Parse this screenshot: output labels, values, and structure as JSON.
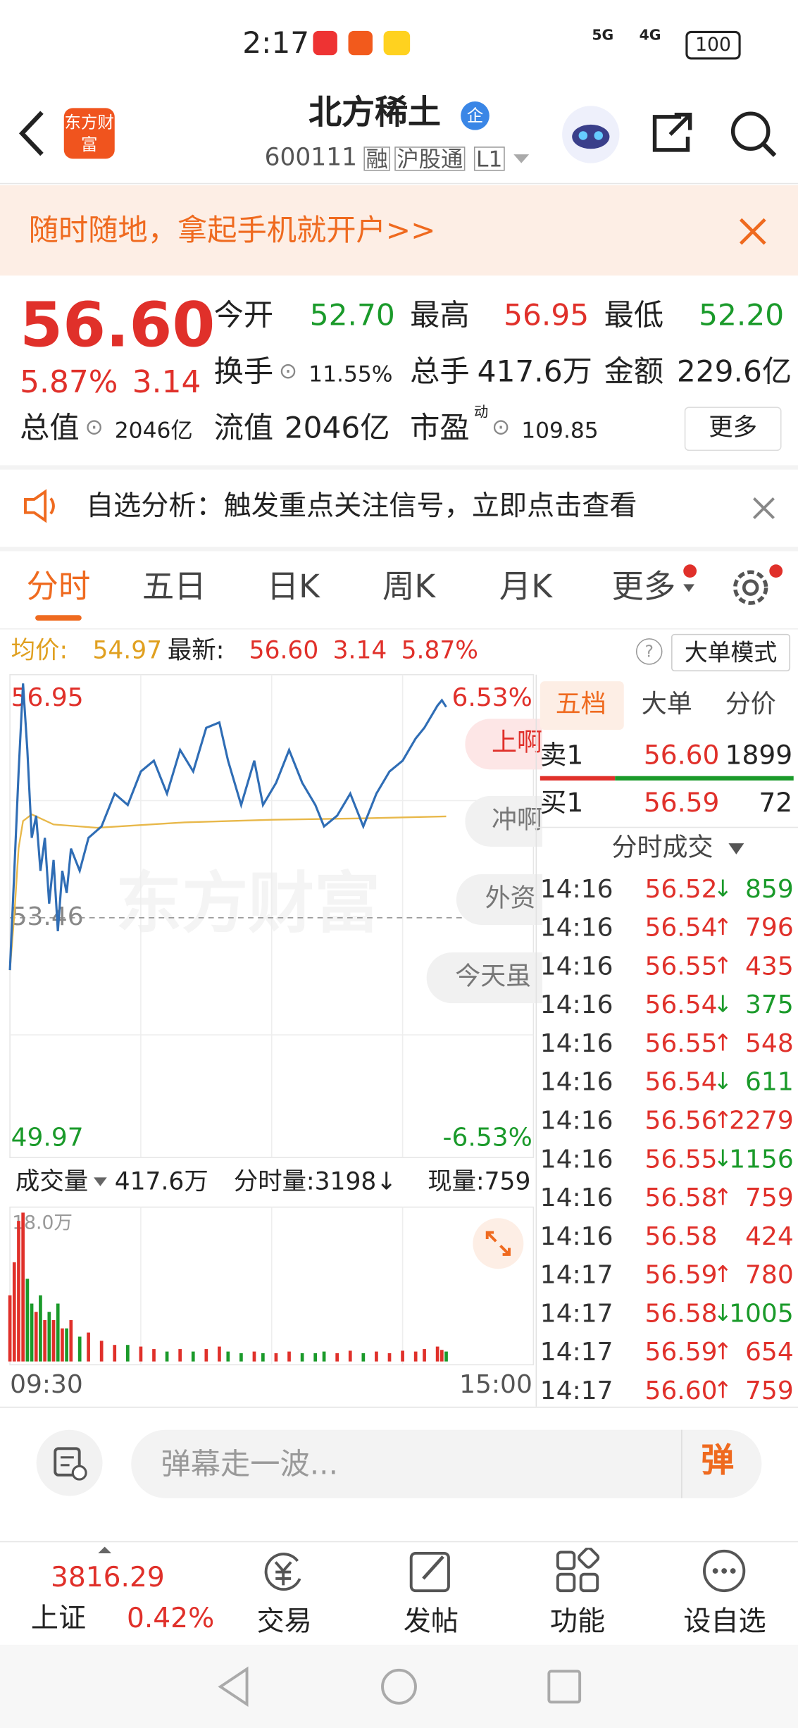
{
  "status_bar": {
    "time": "2:17",
    "network": [
      "5G",
      "4G"
    ],
    "battery": "100"
  },
  "header": {
    "logo": "东方财富",
    "title": "北方稀土",
    "badge": "企",
    "code": "600111",
    "tags": [
      "融",
      "沪股通",
      "L1"
    ]
  },
  "banner": {
    "text": "随时随地，拿起手机就开户>>"
  },
  "quote": {
    "price": "56.60",
    "change_pct": "5.87%",
    "change": "3.14",
    "more": "更多",
    "fields": [
      {
        "label": "今开",
        "value": "52.70"
      },
      {
        "label": "最高",
        "value": "56.95"
      },
      {
        "label": "最低",
        "value": "52.20"
      },
      {
        "label": "换手",
        "value": "11.55%"
      },
      {
        "label": "总手",
        "value": "417.6万"
      },
      {
        "label": "金额",
        "value": "229.6亿"
      },
      {
        "label": "总值",
        "value": "2046亿"
      },
      {
        "label": "流值",
        "value": "2046亿"
      },
      {
        "label": "市盈",
        "sup": "动",
        "value": "109.85"
      }
    ]
  },
  "notice": {
    "text": "自选分析：触发重点关注信号，立即点击查看"
  },
  "tabs": [
    "分时",
    "五日",
    "日K",
    "周K",
    "月K",
    "更多"
  ],
  "info": {
    "avg_label": "均价:",
    "avg": "54.97",
    "last_label": "最新:",
    "last": "56.60",
    "change": "3.14",
    "pct": "5.87%",
    "help": "?",
    "mode": "大单模式"
  },
  "watermark": "东方财富",
  "danmaku": [
    "上啊",
    "冲啊",
    "外资",
    "今天虽"
  ],
  "chart_data": {
    "type": "line",
    "xlim": [
      0,
      240
    ],
    "xticks": [
      {
        "value": 0,
        "label": "09:30"
      },
      {
        "value": 240,
        "label": "15:00"
      }
    ],
    "ylim": [
      49.97,
      56.95
    ],
    "yticks": [
      56.95,
      53.46,
      49.97
    ],
    "y2lim": [
      -6.53,
      6.53
    ],
    "y2ticks": [
      {
        "value": 6.53,
        "label": "6.53%"
      },
      {
        "value": -6.53,
        "label": "-6.53%"
      }
    ],
    "series": [
      {
        "color": "#2f6db5",
        "x": [
          0,
          2,
          4,
          6,
          8,
          10,
          12,
          14,
          16,
          18,
          20,
          22,
          24,
          26,
          28,
          32,
          36,
          42,
          48,
          54,
          60,
          66,
          72,
          78,
          84,
          90,
          96,
          100,
          106,
          112,
          116,
          122,
          128,
          134,
          140,
          144,
          150,
          156,
          162,
          168,
          174,
          180,
          186,
          190,
          196,
          198,
          200
        ],
        "values": [
          52.68,
          54.16,
          55.64,
          56.95,
          55.96,
          54.65,
          54.98,
          54.16,
          54.65,
          53.67,
          54.32,
          53.26,
          54.16,
          53.83,
          54.49,
          54.16,
          54.65,
          54.82,
          55.31,
          55.14,
          55.64,
          55.8,
          55.31,
          55.96,
          55.64,
          56.29,
          56.37,
          55.8,
          55.14,
          55.8,
          55.14,
          55.47,
          55.96,
          55.47,
          55.14,
          54.82,
          54.98,
          55.31,
          54.82,
          55.31,
          55.64,
          55.8,
          56.13,
          56.29,
          56.62,
          56.7,
          56.6
        ]
      },
      {
        "color": "#e8b84a",
        "x": [
          0,
          2,
          4,
          6,
          10,
          20,
          40,
          80,
          120,
          160,
          200
        ],
        "values": [
          52.68,
          53.5,
          54.5,
          54.9,
          55.0,
          54.85,
          54.8,
          54.88,
          54.92,
          54.94,
          54.97
        ]
      }
    ],
    "volume": {
      "up_color": "#e0302a",
      "down_color": "#1a9a2a",
      "ylim": [
        0,
        18
      ],
      "yticks": [
        {
          "value": 18,
          "label": "18.0万"
        }
      ],
      "values": [
        8,
        12,
        17,
        18,
        10,
        7,
        6,
        8,
        5,
        6,
        5,
        7,
        4,
        4,
        5,
        3,
        3.5,
        2.5,
        2,
        2,
        1.8,
        1.5,
        1.2,
        1.5,
        1.2,
        1.5,
        1.8,
        1.2,
        1,
        1.2,
        1,
        1,
        1.2,
        1,
        1,
        1.2,
        1,
        1.3,
        1,
        1.2,
        1,
        1.3,
        1.2,
        1.5,
        1.8,
        1.4,
        1.2
      ]
    }
  },
  "volume_bar": {
    "label": "成交量",
    "total": "417.6万",
    "period": "分时量:3198↓",
    "current": "现量:759"
  },
  "depth": {
    "tabs": [
      "五档",
      "大单",
      "分价"
    ],
    "ask": {
      "label": "卖1",
      "price": "56.60",
      "volume": "1899"
    },
    "bid": {
      "label": "买1",
      "price": "56.59",
      "volume": "72"
    },
    "trades_title": "分时成交"
  },
  "trades": [
    {
      "time": "14:16",
      "price": "56.52",
      "dir": "↓",
      "volume": "859"
    },
    {
      "time": "14:16",
      "price": "56.54",
      "dir": "↑",
      "volume": "796"
    },
    {
      "time": "14:16",
      "price": "56.55",
      "dir": "↑",
      "volume": "435"
    },
    {
      "time": "14:16",
      "price": "56.54",
      "dir": "↓",
      "volume": "375"
    },
    {
      "time": "14:16",
      "price": "56.55",
      "dir": "↑",
      "volume": "548"
    },
    {
      "time": "14:16",
      "price": "56.54",
      "dir": "↓",
      "volume": "611"
    },
    {
      "time": "14:16",
      "price": "56.56",
      "dir": "↑",
      "volume": "2279"
    },
    {
      "time": "14:16",
      "price": "56.55",
      "dir": "↓",
      "volume": "1156"
    },
    {
      "time": "14:16",
      "price": "56.58",
      "dir": "↑",
      "volume": "759"
    },
    {
      "time": "14:16",
      "price": "56.58",
      "volume": "424"
    },
    {
      "time": "14:17",
      "price": "56.59",
      "dir": "↑",
      "volume": "780"
    },
    {
      "time": "14:17",
      "price": "56.58",
      "dir": "↓",
      "volume": "1005"
    },
    {
      "time": "14:17",
      "price": "56.59",
      "dir": "↑",
      "volume": "654"
    },
    {
      "time": "14:17",
      "price": "56.60",
      "dir": "↑",
      "volume": "759"
    }
  ],
  "comment": {
    "placeholder": "弹幕走一波...",
    "button": "弹"
  },
  "nav": {
    "index_value": "3816.29",
    "index_name": "上证",
    "index_pct": "0.42%",
    "items": [
      "交易",
      "发帖",
      "功能",
      "设自选"
    ]
  }
}
